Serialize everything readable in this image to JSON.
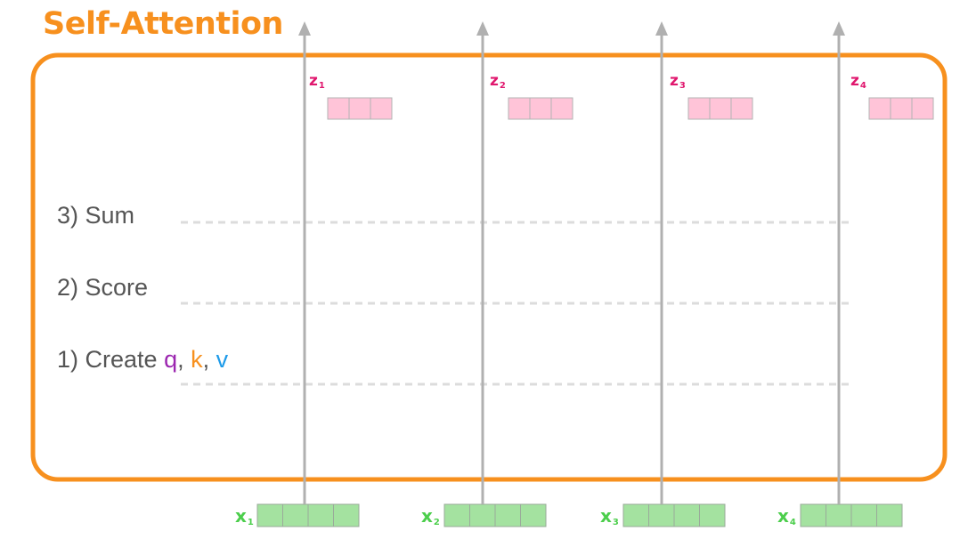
{
  "title": "Self-Attention",
  "steps": {
    "sum": "3) Sum",
    "score": "2) Score",
    "create_prefix": "1) Create ",
    "q": "q",
    "comma1": ", ",
    "k": "k",
    "comma2": ", ",
    "v": "v"
  },
  "outputs": [
    {
      "letter": "z",
      "sub": "1"
    },
    {
      "letter": "z",
      "sub": "2"
    },
    {
      "letter": "z",
      "sub": "3"
    },
    {
      "letter": "z",
      "sub": "4"
    }
  ],
  "inputs": [
    {
      "letter": "x",
      "sub": "1"
    },
    {
      "letter": "x",
      "sub": "2"
    },
    {
      "letter": "x",
      "sub": "3"
    },
    {
      "letter": "x",
      "sub": "4"
    }
  ],
  "colors": {
    "accent_orange": "#f7901e",
    "output_fill": "#ffc4d8",
    "output_label": "#e0176e",
    "input_fill": "#a4e2a0",
    "input_label": "#4cce4c",
    "arrow": "#b0b0b0",
    "q": "#9c27b0",
    "k": "#f7901e",
    "v": "#1e9be9"
  }
}
